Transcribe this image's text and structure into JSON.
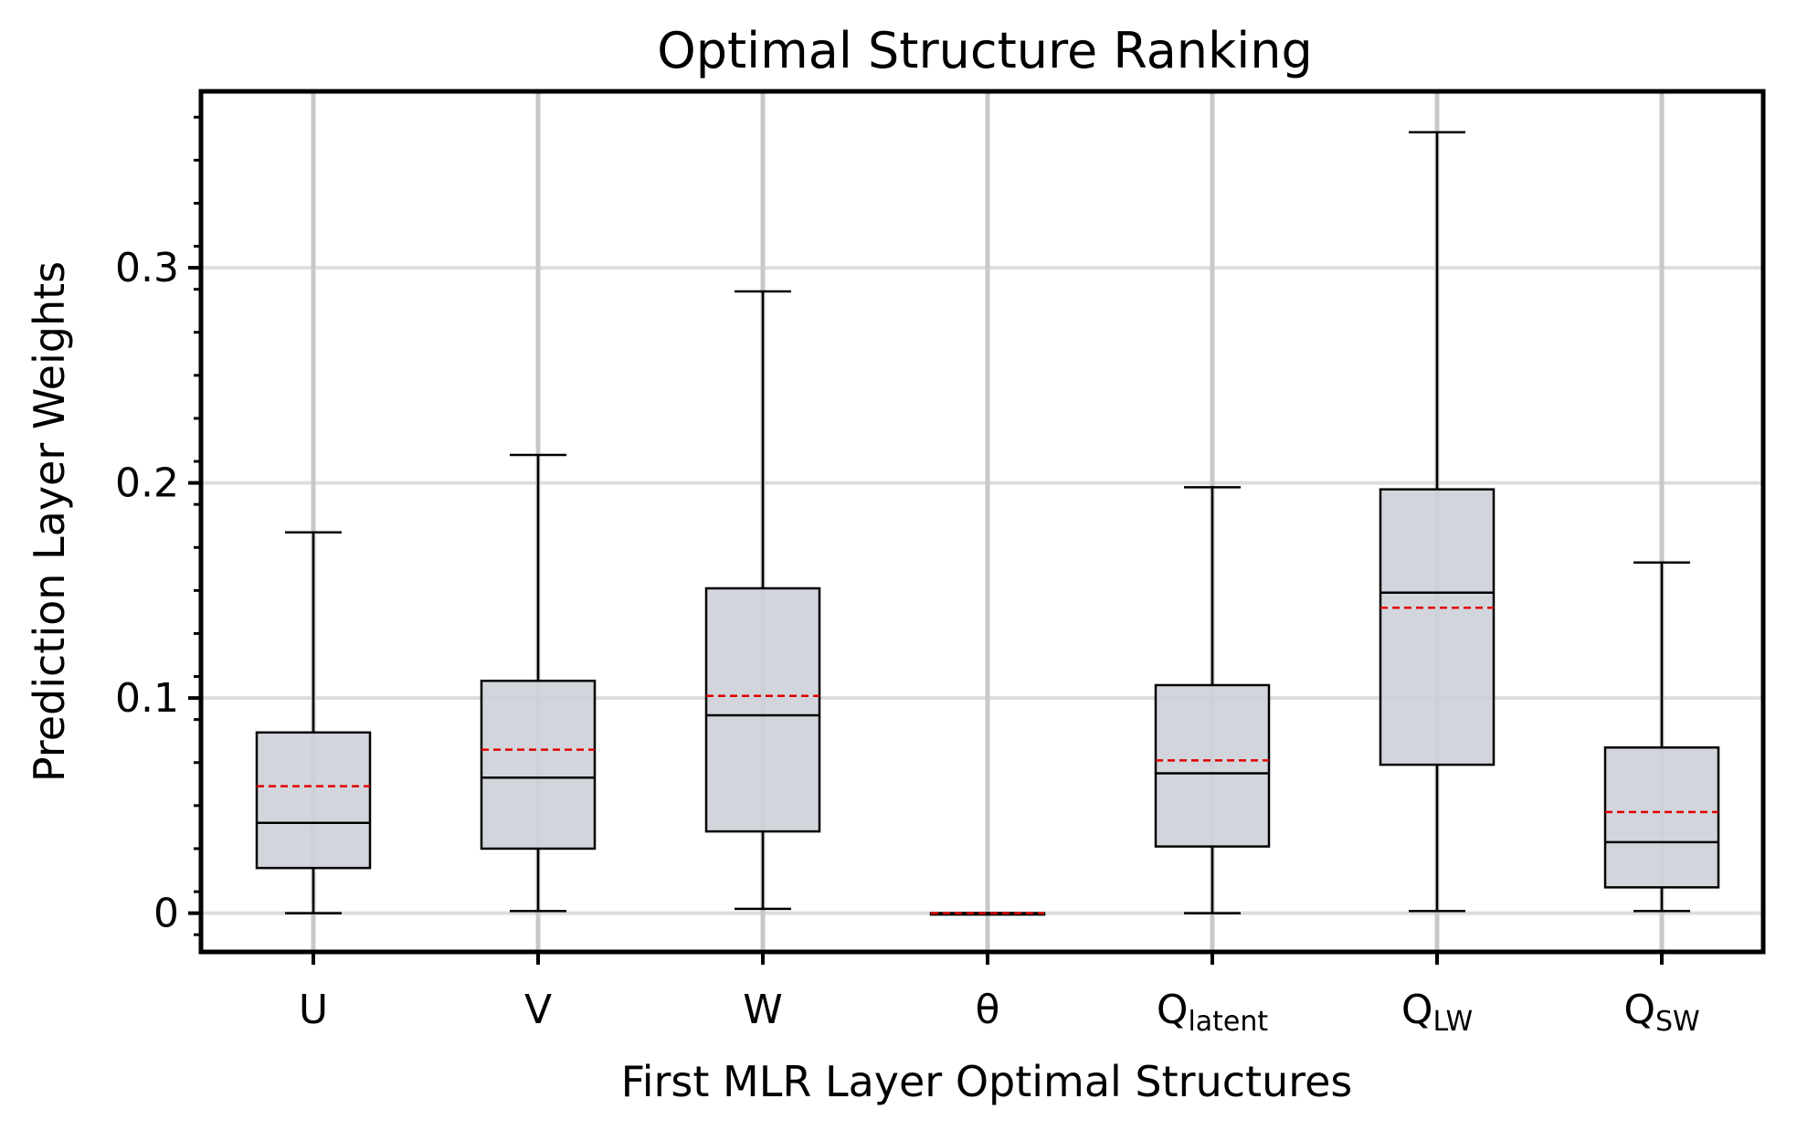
{
  "chart_data": {
    "type": "box",
    "title": "Optimal Structure Ranking",
    "xlabel": "First MLR Layer Optimal Structures",
    "ylabel": "Prediction Layer Weights",
    "ylim": [
      -0.018,
      0.382
    ],
    "yticks": [
      0,
      0.1,
      0.2,
      0.3
    ],
    "ytick_labels": [
      "0",
      "0.1",
      "0.2",
      "0.3"
    ],
    "grid": true,
    "mean_line_style": "red dashed",
    "median_line_style": "black solid",
    "box_color": "#cdd2d8",
    "mean_color": "#e00000",
    "categories": [
      {
        "label": "U",
        "sub": "",
        "whisker_low": 0.0,
        "q1": 0.021,
        "median": 0.042,
        "mean": 0.059,
        "q3": 0.084,
        "whisker_high": 0.177
      },
      {
        "label": "V",
        "sub": "",
        "whisker_low": 0.001,
        "q1": 0.03,
        "median": 0.063,
        "mean": 0.076,
        "q3": 0.108,
        "whisker_high": 0.213
      },
      {
        "label": "W",
        "sub": "",
        "whisker_low": 0.002,
        "q1": 0.038,
        "median": 0.092,
        "mean": 0.101,
        "q3": 0.151,
        "whisker_high": 0.289
      },
      {
        "label": "θ",
        "sub": "",
        "whisker_low": 0.0,
        "q1": 0.0,
        "median": 0.0,
        "mean": 0.0,
        "q3": 0.0,
        "whisker_high": 0.0
      },
      {
        "label": "Q",
        "sub": "latent",
        "whisker_low": 0.0,
        "q1": 0.031,
        "median": 0.065,
        "mean": 0.071,
        "q3": 0.106,
        "whisker_high": 0.198
      },
      {
        "label": "Q",
        "sub": "LW",
        "whisker_low": 0.001,
        "q1": 0.069,
        "median": 0.149,
        "mean": 0.142,
        "q3": 0.197,
        "whisker_high": 0.363
      },
      {
        "label": "Q",
        "sub": "SW",
        "whisker_low": 0.001,
        "q1": 0.012,
        "median": 0.033,
        "mean": 0.047,
        "q3": 0.077,
        "whisker_high": 0.163
      }
    ]
  }
}
